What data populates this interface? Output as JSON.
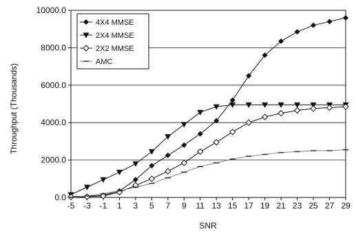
{
  "chart_data": {
    "type": "line",
    "xlabel": "SNR",
    "ylabel": "Throughput (Thousands)",
    "x": [
      -5,
      -3,
      -1,
      1,
      3,
      5,
      7,
      9,
      11,
      13,
      15,
      17,
      19,
      21,
      23,
      25,
      27,
      29
    ],
    "x_ticks": [
      "-5",
      "-3",
      "-1",
      "1",
      "3",
      "5",
      "7",
      "9",
      "11",
      "13",
      "15",
      "17",
      "19",
      "21",
      "23",
      "25",
      "27",
      "29"
    ],
    "y_ticks": [
      "0.0",
      "2000.0",
      "4000.0",
      "6000.0",
      "8000.0",
      "10000.0"
    ],
    "xlim": [
      -5,
      29
    ],
    "ylim": [
      0,
      10000
    ],
    "grid": "horizontal",
    "legend_position": "top-left",
    "series": [
      {
        "name": "4X4 MMSE",
        "marker": "diamond-filled",
        "values": [
          50,
          60,
          120,
          350,
          950,
          1700,
          2250,
          2800,
          3400,
          4100,
          5200,
          6500,
          7600,
          8350,
          8850,
          9200,
          9400,
          9600
        ]
      },
      {
        "name": "2X4 MMSE",
        "marker": "triangle-down",
        "values": [
          150,
          550,
          950,
          1350,
          1800,
          2450,
          3250,
          3900,
          4550,
          4850,
          4950,
          4950,
          4950,
          4950,
          4950,
          4950,
          4950,
          4950
        ]
      },
      {
        "name": "2X2 MMSE",
        "marker": "diamond-open",
        "values": [
          30,
          40,
          80,
          280,
          650,
          1000,
          1400,
          1850,
          2450,
          2950,
          3500,
          4000,
          4300,
          4500,
          4650,
          4750,
          4800,
          4850
        ]
      },
      {
        "name": "AMC",
        "marker": "dash",
        "values": [
          10,
          80,
          200,
          350,
          550,
          750,
          1050,
          1350,
          1650,
          1850,
          2050,
          2200,
          2300,
          2400,
          2450,
          2500,
          2500,
          2550
        ]
      }
    ]
  }
}
